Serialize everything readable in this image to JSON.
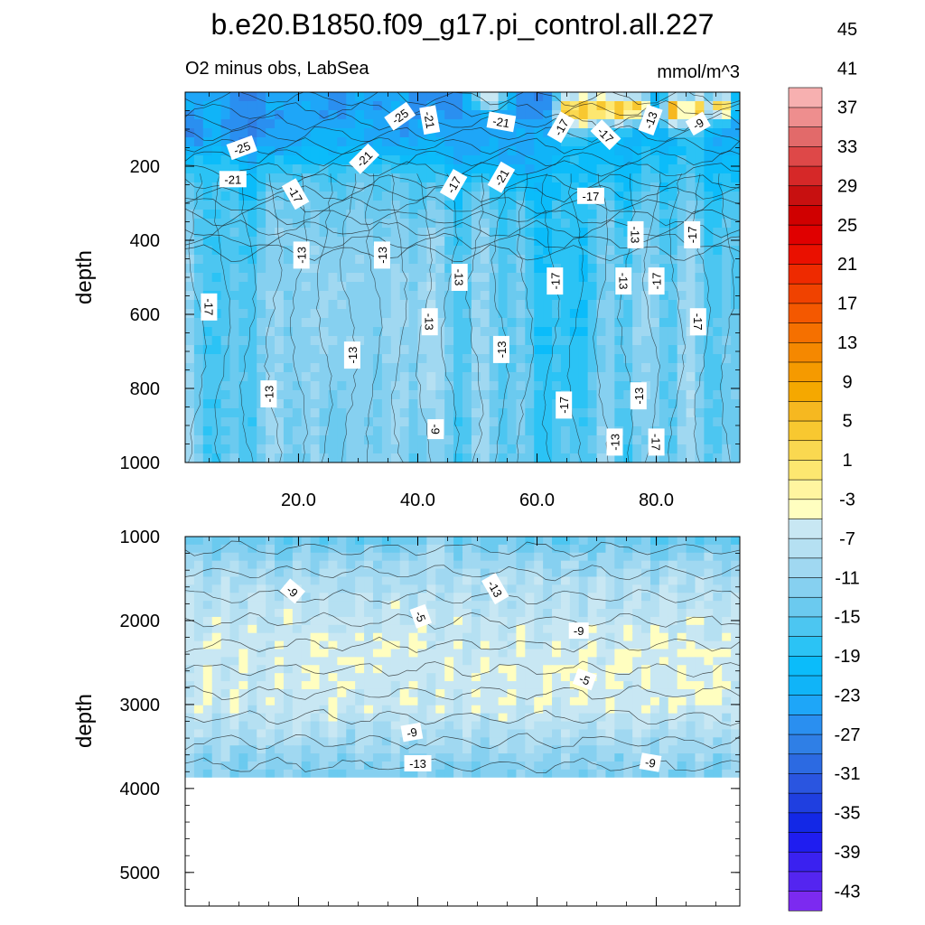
{
  "figure": {
    "title": "b.e20.B1850.f09_g17.pi_control.all.227",
    "left_subtitle": "O2 minus obs, LabSea",
    "right_subtitle": "mmol/m^3"
  },
  "chart_data": [
    {
      "type": "heatmap",
      "panel": "upper",
      "title": "b.e20.B1850.f09_g17.pi_control.all.227",
      "subtitle_left": "O2 minus obs, LabSea",
      "subtitle_right": "mmol/m^3",
      "ylabel": "depth",
      "xlim": [
        1,
        94
      ],
      "ylim": [
        0,
        1000
      ],
      "y_inverted": true,
      "x_ticks": [
        20,
        40,
        60,
        80
      ],
      "x_tick_labels": [
        "20.0",
        "40.0",
        "60.0",
        "80.0"
      ],
      "y_ticks": [
        200,
        400,
        600,
        800,
        1000
      ],
      "y_tick_labels": [
        "200",
        "400",
        "600",
        "800",
        "1000"
      ],
      "base_value": -15,
      "features": [
        {
          "x": 8,
          "y": 110,
          "value": -29,
          "rx": 14,
          "ry": 60
        },
        {
          "x": 22,
          "y": 120,
          "value": -27,
          "rx": 10,
          "ry": 70
        },
        {
          "x": 38,
          "y": 110,
          "value": -27,
          "rx": 10,
          "ry": 60
        },
        {
          "x": 50,
          "y": 120,
          "value": -25,
          "rx": 10,
          "ry": 70
        },
        {
          "x": 58,
          "y": 150,
          "value": -23,
          "rx": 10,
          "ry": 90
        },
        {
          "x": 6,
          "y": 500,
          "value": -17,
          "rx": 3,
          "ry": 500
        },
        {
          "x": 26,
          "y": 600,
          "value": -11,
          "rx": 12,
          "ry": 420
        },
        {
          "x": 42,
          "y": 650,
          "value": -9,
          "rx": 3,
          "ry": 400
        },
        {
          "x": 66,
          "y": 550,
          "value": -19,
          "rx": 4,
          "ry": 500
        },
        {
          "x": 78,
          "y": 650,
          "value": -11,
          "rx": 3,
          "ry": 400
        },
        {
          "x": 65,
          "y": 50,
          "value": 5,
          "rx": 2,
          "ry": 50
        },
        {
          "x": 68,
          "y": 50,
          "value": 7,
          "rx": 2,
          "ry": 50
        },
        {
          "x": 71,
          "y": 40,
          "value": 5,
          "rx": 2,
          "ry": 40
        },
        {
          "x": 74,
          "y": 50,
          "value": 7,
          "rx": 2,
          "ry": 50
        },
        {
          "x": 77,
          "y": 40,
          "value": 5,
          "rx": 2,
          "ry": 40
        },
        {
          "x": 83,
          "y": 50,
          "value": 7,
          "rx": 2,
          "ry": 50
        },
        {
          "x": 87,
          "y": 50,
          "value": 5,
          "rx": 2,
          "ry": 50
        },
        {
          "x": 91,
          "y": 40,
          "value": 5,
          "rx": 2,
          "ry": 40
        },
        {
          "x": 52,
          "y": 20,
          "value": -3,
          "rx": 3,
          "ry": 25
        }
      ],
      "contour_labels": [
        {
          "x": 10.5,
          "y": 150,
          "text": "-25",
          "rot": -20
        },
        {
          "x": 9,
          "y": 235,
          "text": "-21",
          "rot": 0
        },
        {
          "x": 19.5,
          "y": 275,
          "text": "-17",
          "rot": 60
        },
        {
          "x": 31,
          "y": 180,
          "text": "-21",
          "rot": -45
        },
        {
          "x": 37,
          "y": 65,
          "text": "-25",
          "rot": -35
        },
        {
          "x": 42,
          "y": 75,
          "text": "-21",
          "rot": 80
        },
        {
          "x": 54,
          "y": 80,
          "text": "-21",
          "rot": 10
        },
        {
          "x": 46,
          "y": 250,
          "text": "-17",
          "rot": -60
        },
        {
          "x": 54,
          "y": 230,
          "text": "-21",
          "rot": -60
        },
        {
          "x": 64,
          "y": 95,
          "text": "-17",
          "rot": -60
        },
        {
          "x": 71.5,
          "y": 115,
          "text": "-17",
          "rot": 45
        },
        {
          "x": 79,
          "y": 75,
          "text": "-13",
          "rot": -70
        },
        {
          "x": 87,
          "y": 85,
          "text": "-9",
          "rot": -30
        },
        {
          "x": 69,
          "y": 280,
          "text": "-17",
          "rot": 0
        },
        {
          "x": 20.5,
          "y": 440,
          "text": "-13",
          "rot": -90
        },
        {
          "x": 34,
          "y": 440,
          "text": "-13",
          "rot": -90
        },
        {
          "x": 47,
          "y": 500,
          "text": "-13",
          "rot": 90
        },
        {
          "x": 5,
          "y": 580,
          "text": "-17",
          "rot": 90
        },
        {
          "x": 42,
          "y": 620,
          "text": "-13",
          "rot": 90
        },
        {
          "x": 29,
          "y": 710,
          "text": "-13",
          "rot": -90
        },
        {
          "x": 54,
          "y": 695,
          "text": "-13",
          "rot": -90
        },
        {
          "x": 15,
          "y": 815,
          "text": "-13",
          "rot": -90
        },
        {
          "x": 63,
          "y": 510,
          "text": "-17",
          "rot": -90
        },
        {
          "x": 74.5,
          "y": 510,
          "text": "-13",
          "rot": 90
        },
        {
          "x": 80,
          "y": 510,
          "text": "-17",
          "rot": -90
        },
        {
          "x": 76.5,
          "y": 385,
          "text": "-13",
          "rot": 90
        },
        {
          "x": 86,
          "y": 385,
          "text": "-17",
          "rot": -90
        },
        {
          "x": 87,
          "y": 620,
          "text": "-17",
          "rot": 90
        },
        {
          "x": 64.5,
          "y": 845,
          "text": "-17",
          "rot": -90
        },
        {
          "x": 77,
          "y": 820,
          "text": "-13",
          "rot": -90
        },
        {
          "x": 73,
          "y": 945,
          "text": "-13",
          "rot": -90
        },
        {
          "x": 80,
          "y": 945,
          "text": "-17",
          "rot": 90
        },
        {
          "x": 43,
          "y": 910,
          "text": "-9",
          "rot": 90
        }
      ]
    },
    {
      "type": "heatmap",
      "panel": "lower",
      "ylabel": "depth",
      "xlim": [
        1,
        94
      ],
      "ylim": [
        1000,
        5400
      ],
      "y_inverted": true,
      "x_ticks": [
        20,
        40,
        60,
        80
      ],
      "x_tick_labels": [],
      "y_ticks": [
        1000,
        2000,
        3000,
        4000,
        5000
      ],
      "y_tick_labels": [
        "1000",
        "2000",
        "3000",
        "4000",
        "5000"
      ],
      "bottom_depth": 3870,
      "features": [
        {
          "x": 27,
          "y": 2500,
          "value": -5,
          "rx": 9,
          "ry": 400
        },
        {
          "x": 4,
          "y": 2450,
          "value": -5,
          "rx": 3,
          "ry": 200
        },
        {
          "x": 38,
          "y": 2350,
          "value": -5,
          "rx": 4,
          "ry": 200
        },
        {
          "x": 55,
          "y": 2650,
          "value": -5,
          "rx": 4,
          "ry": 350
        },
        {
          "x": 65,
          "y": 2600,
          "value": -5,
          "rx": 5,
          "ry": 300
        },
        {
          "x": 82,
          "y": 2500,
          "value": -5,
          "rx": 12,
          "ry": 450
        },
        {
          "x": 88,
          "y": 2900,
          "value": -3,
          "rx": 2,
          "ry": 150
        },
        {
          "x": 43,
          "y": 1200,
          "value": -7,
          "rx": 2,
          "ry": 250
        }
      ],
      "contour_labels": [
        {
          "x": 19,
          "y": 1650,
          "text": "-9",
          "rot": 40
        },
        {
          "x": 40.5,
          "y": 1950,
          "text": "-5",
          "rot": 70
        },
        {
          "x": 53,
          "y": 1620,
          "text": "-13",
          "rot": 60
        },
        {
          "x": 67,
          "y": 2120,
          "text": "-9",
          "rot": 0
        },
        {
          "x": 68,
          "y": 2700,
          "text": "-5",
          "rot": 20
        },
        {
          "x": 39,
          "y": 3330,
          "text": "-9",
          "rot": -10
        },
        {
          "x": 40,
          "y": 3700,
          "text": "-13",
          "rot": 0
        },
        {
          "x": 79,
          "y": 3690,
          "text": "-9",
          "rot": 10
        }
      ]
    }
  ],
  "colorbar": {
    "colors": [
      "#7c2af0",
      "#5425f0",
      "#3a21f0",
      "#1f1df0",
      "#1328e6",
      "#1f3fe0",
      "#2a55e0",
      "#2c6ae2",
      "#2f7fe6",
      "#2a8ff0",
      "#1ea6f8",
      "#10b4f8",
      "#0bbcfa",
      "#2bc3f5",
      "#4cc6f1",
      "#6bcaef",
      "#86d0f0",
      "#a0d8f1",
      "#b5e0f2",
      "#c8e7f3",
      "#fffec0",
      "#fff5a0",
      "#fde770",
      "#fad850",
      "#f8c830",
      "#f6b820",
      "#f5a800",
      "#f59a00",
      "#f58800",
      "#f57000",
      "#f45800",
      "#f04200",
      "#ee2a00",
      "#ea1000",
      "#e00000",
      "#d00000",
      "#c81010",
      "#d62828",
      "#de4848",
      "#e26a6a",
      "#ee8e8e",
      "#f7b0b0"
    ],
    "labels": [
      "-43",
      "-39",
      "-35",
      "-31",
      "-27",
      "-23",
      "-19",
      "-15",
      "-11",
      "-7",
      "-3",
      "1",
      "5",
      "9",
      "13",
      "17",
      "21",
      "25",
      "29",
      "33",
      "37",
      "41",
      "45"
    ]
  }
}
